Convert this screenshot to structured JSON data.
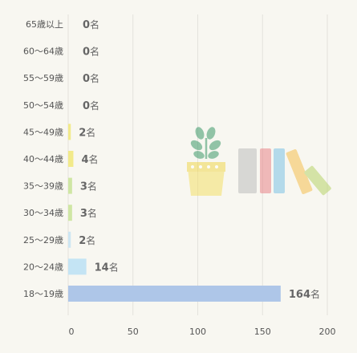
{
  "chart_data": {
    "type": "bar",
    "orientation": "horizontal",
    "categories": [
      "65歳以上",
      "60〜64歳",
      "55〜59歳",
      "50〜54歳",
      "45〜49歳",
      "40〜44歳",
      "35〜39歳",
      "30〜34歳",
      "25〜29歳",
      "20〜24歳",
      "18〜19歳"
    ],
    "values": [
      0,
      0,
      0,
      0,
      2,
      4,
      3,
      3,
      2,
      14,
      164
    ],
    "value_unit": "名",
    "colors": [
      "#f2ea8a",
      "#f2ea8a",
      "#f2ea8a",
      "#f2ea8a",
      "#f2ea8a",
      "#f2ea8a",
      "#cfe6a4",
      "#cfe6a4",
      "#cde6f3",
      "#c4e4f4",
      "#aec6e8"
    ],
    "xlim": [
      0,
      200
    ],
    "x_ticks": [
      "0",
      "50",
      "100",
      "150",
      "200"
    ],
    "grid": true,
    "decoration": "potted-plant-and-books-illustration"
  }
}
